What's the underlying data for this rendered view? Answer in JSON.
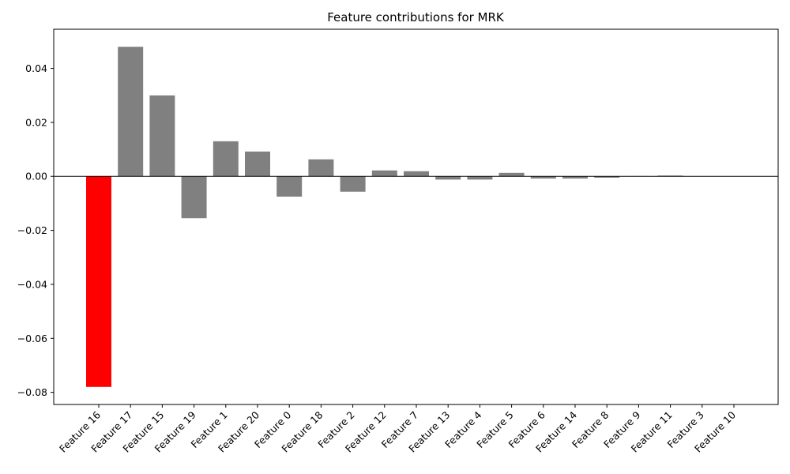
{
  "chart_data": {
    "type": "bar",
    "title": "Feature contributions for MRK",
    "xlabel": "",
    "ylabel": "",
    "ylim": [
      -0.0845,
      0.0545
    ],
    "yticks": [
      -0.08,
      -0.06,
      -0.04,
      -0.02,
      0.0,
      0.02,
      0.04
    ],
    "ytick_labels": [
      "−0.08",
      "−0.06",
      "−0.04",
      "−0.02",
      "0.00",
      "0.02",
      "0.04"
    ],
    "grid": false,
    "zero_line": true,
    "categories": [
      "Feature 16",
      "Feature 17",
      "Feature 15",
      "Feature 19",
      "Feature 1",
      "Feature 20",
      "Feature 0",
      "Feature 18",
      "Feature 2",
      "Feature 12",
      "Feature 7",
      "Feature 13",
      "Feature 4",
      "Feature 5",
      "Feature 6",
      "Feature 14",
      "Feature 8",
      "Feature 9",
      "Feature 11",
      "Feature 3",
      "Feature 10"
    ],
    "values": [
      -0.078,
      0.048,
      0.03,
      -0.0155,
      0.013,
      0.0092,
      -0.0075,
      0.0063,
      -0.0057,
      0.0022,
      0.0019,
      -0.0012,
      -0.0012,
      0.0013,
      -0.0008,
      -0.0008,
      -0.0005,
      0.0001,
      0.0003,
      0.0,
      0.0
    ],
    "highlight_index": 0,
    "colors": {
      "highlight": "#ff0000",
      "default": "#808080",
      "axis": "#000000"
    }
  }
}
